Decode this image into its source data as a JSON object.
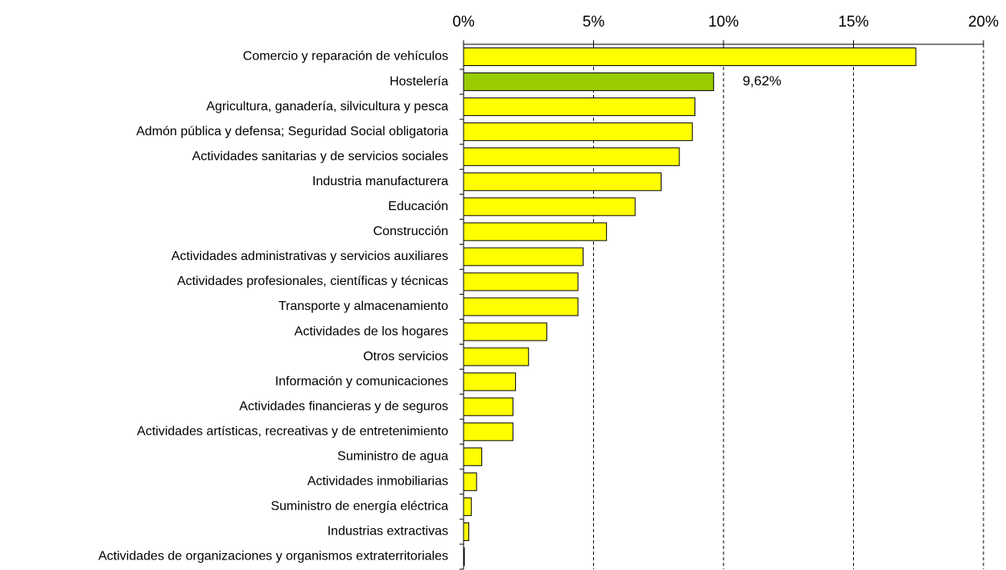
{
  "chart_data": {
    "type": "barh",
    "categories": [
      "Comercio y reparación de vehículos",
      "Hostelería",
      "Agricultura, ganadería, silvicultura y pesca",
      "Admón pública y defensa; Seguridad Social obligatoria",
      "Actividades sanitarias y de servicios sociales",
      "Industria manufacturera",
      "Educación",
      "Construcción",
      "Actividades administrativas y servicios auxiliares",
      "Actividades profesionales, científicas y técnicas",
      "Transporte y almacenamiento",
      "Actividades de los hogares",
      "Otros servicios",
      "Información y comunicaciones",
      "Actividades financieras y de seguros",
      "Actividades artísticas, recreativas y de entretenimiento",
      "Suministro de agua",
      "Actividades inmobiliarias",
      "Suministro de energía eléctrica",
      "Industrias extractivas",
      "Actividades de organizaciones y organismos extraterritoriales"
    ],
    "values": [
      17.4,
      9.62,
      8.9,
      8.8,
      8.3,
      7.6,
      6.6,
      5.5,
      4.6,
      4.4,
      4.4,
      3.2,
      2.5,
      2.0,
      1.9,
      1.9,
      0.7,
      0.5,
      0.3,
      0.2,
      0.03
    ],
    "value_labels": [
      null,
      "9,62%",
      null,
      null,
      null,
      null,
      null,
      null,
      null,
      null,
      null,
      null,
      null,
      null,
      null,
      null,
      null,
      null,
      null,
      null,
      null
    ],
    "colors": [
      "#ffff00",
      "#99cc00",
      "#ffff00",
      "#ffff00",
      "#ffff00",
      "#ffff00",
      "#ffff00",
      "#ffff00",
      "#ffff00",
      "#ffff00",
      "#ffff00",
      "#ffff00",
      "#ffff00",
      "#ffff00",
      "#ffff00",
      "#ffff00",
      "#ffff00",
      "#ffff00",
      "#ffff00",
      "#ffff00",
      "#ffff00"
    ],
    "xlim": [
      0,
      20
    ],
    "xticks": [
      {
        "value": 0,
        "label": "0%"
      },
      {
        "value": 5,
        "label": "5%"
      },
      {
        "value": 10,
        "label": "10%"
      },
      {
        "value": 15,
        "label": "15%"
      },
      {
        "value": 20,
        "label": "20%"
      }
    ],
    "grid": true
  }
}
